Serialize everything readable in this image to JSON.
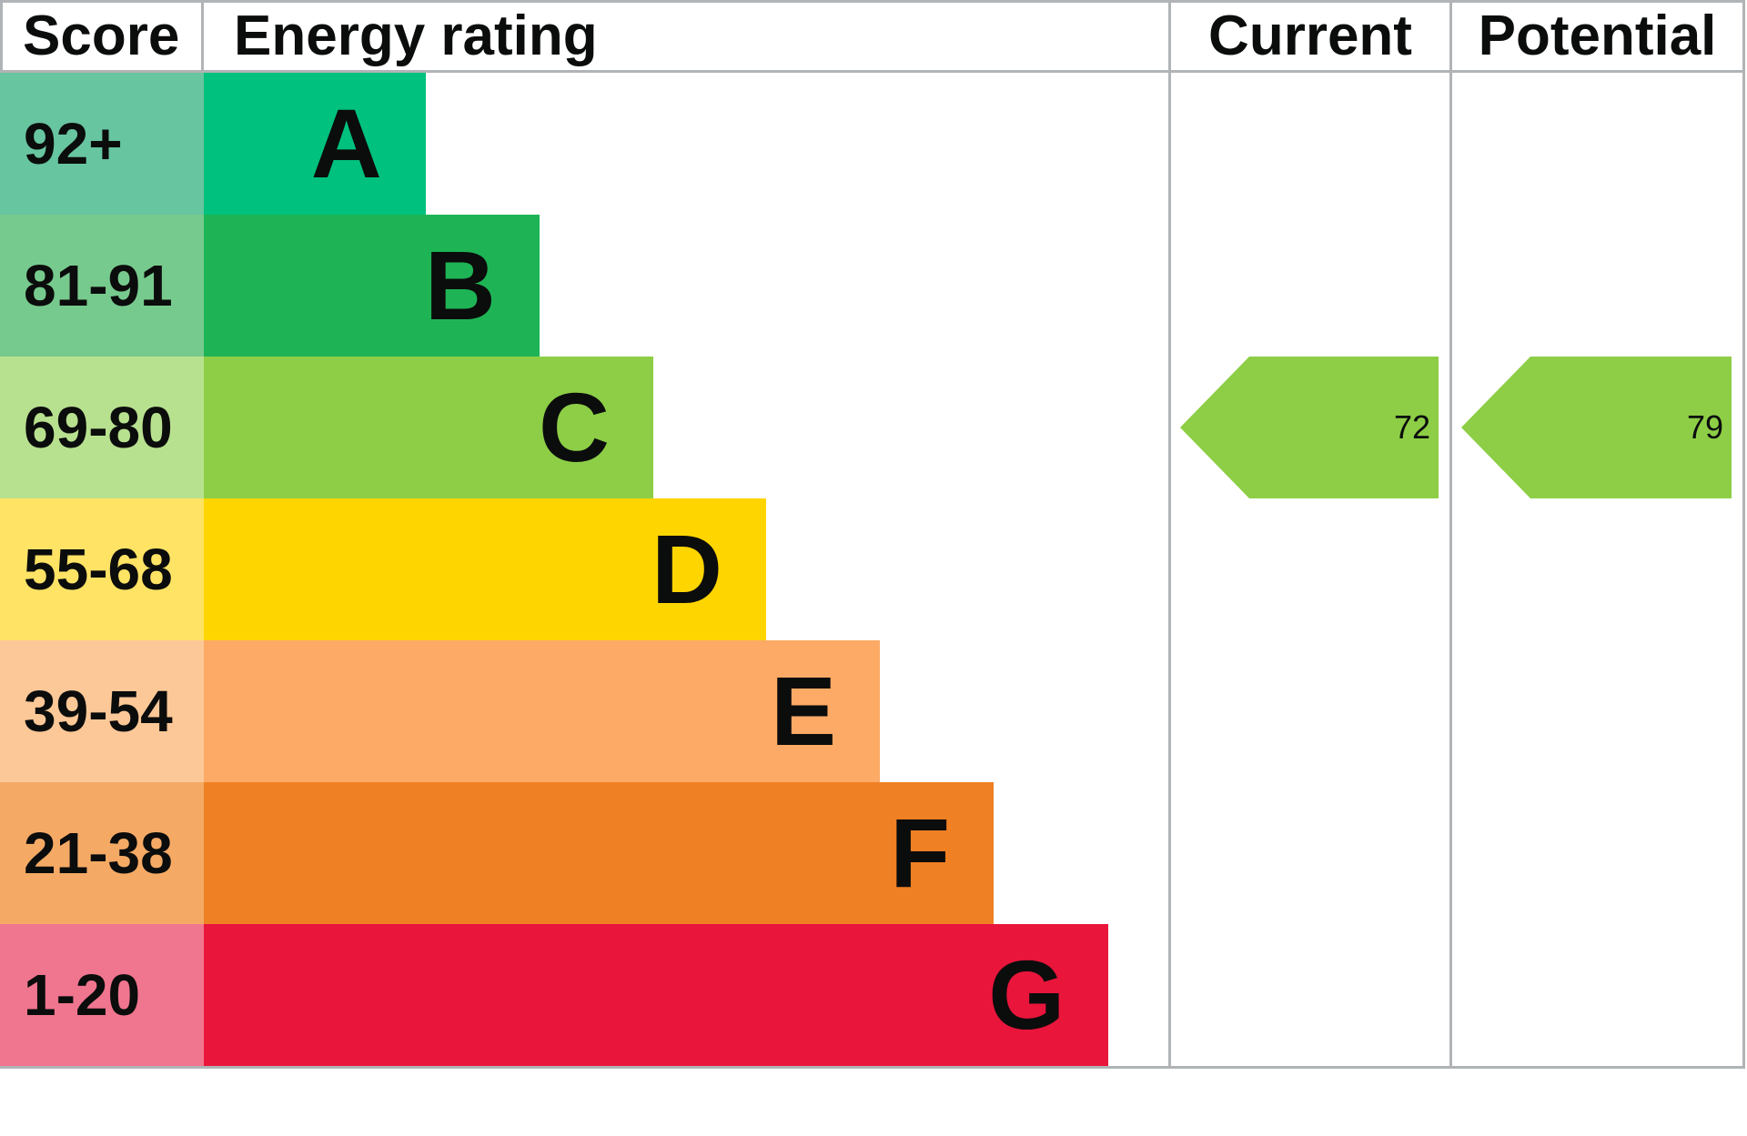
{
  "header": {
    "score": "Score",
    "energy_rating": "Energy rating",
    "current": "Current",
    "potential": "Potential"
  },
  "chart_data": {
    "type": "bar",
    "subtype": "epc-energy-rating-chart",
    "title": "Energy rating",
    "columns": [
      "Score",
      "Energy rating",
      "Current",
      "Potential"
    ],
    "bands": [
      {
        "score": "92+",
        "letter": "A",
        "color": "#00c17d",
        "tint": "#67c5a0",
        "width_pct": 23.0
      },
      {
        "score": "81-91",
        "letter": "B",
        "color": "#1eb455",
        "tint": "#77ca8d",
        "width_pct": 34.8
      },
      {
        "score": "69-80",
        "letter": "C",
        "color": "#8dce46",
        "tint": "#b8e18f",
        "width_pct": 46.6
      },
      {
        "score": "55-68",
        "letter": "D",
        "color": "#ffd500",
        "tint": "#ffe365",
        "width_pct": 58.3
      },
      {
        "score": "39-54",
        "letter": "E",
        "color": "#fcaa65",
        "tint": "#fcc897",
        "width_pct": 70.1
      },
      {
        "score": "21-38",
        "letter": "F",
        "color": "#ef8023",
        "tint": "#f4aa65",
        "width_pct": 81.9
      },
      {
        "score": "1-20",
        "letter": "G",
        "color": "#e9153b",
        "tint": "#f0758e",
        "width_pct": 93.8
      }
    ],
    "current": {
      "value": "72",
      "band": "C",
      "color": "#8dce46"
    },
    "potential": {
      "value": "79",
      "band": "C",
      "color": "#8dce46"
    },
    "border_color": "#b1b4b6",
    "legend_position": "none",
    "grid": false
  }
}
